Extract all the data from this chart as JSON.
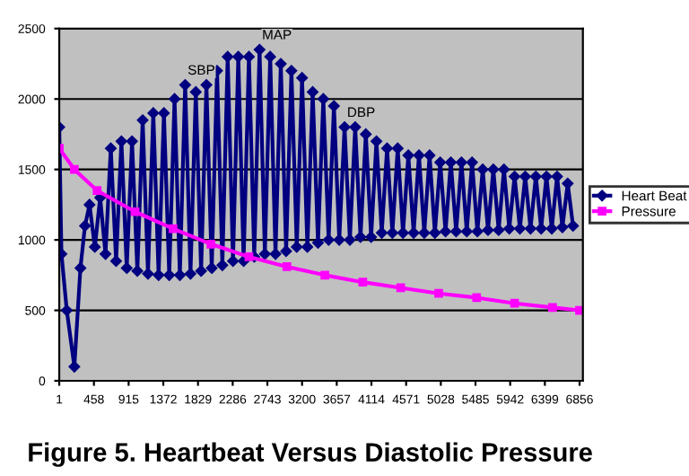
{
  "chart_data": {
    "type": "line",
    "title": "Figure 5. Heartbeat Versus Diastolic Pressure",
    "xlim": [
      1,
      6900
    ],
    "xticks": [
      1,
      458,
      915,
      1372,
      1829,
      2286,
      2743,
      3200,
      3657,
      4114,
      4571,
      5028,
      5485,
      5942,
      6399,
      6856
    ],
    "ylim": [
      0,
      2500
    ],
    "yticks": [
      0,
      500,
      1000,
      1500,
      2000,
      2500
    ],
    "grid": "y",
    "legend": "right",
    "annotations": [
      {
        "text": "SBP",
        "x": 1660,
        "y": 2100
      },
      {
        "text": "MAP",
        "x": 2640,
        "y": 2350
      },
      {
        "text": "DBP",
        "x": 3760,
        "y": 1800
      }
    ],
    "series": [
      {
        "name": "Heart Beat",
        "color": "#000080",
        "marker": "diamond",
        "x": [
          1,
          30,
          100,
          200,
          280,
          340,
          400,
          470,
          540,
          610,
          680,
          750,
          820,
          890,
          960,
          1030,
          1100,
          1170,
          1240,
          1310,
          1380,
          1450,
          1520,
          1590,
          1660,
          1730,
          1800,
          1870,
          1940,
          2010,
          2080,
          2150,
          2220,
          2290,
          2360,
          2430,
          2500,
          2570,
          2640,
          2710,
          2780,
          2850,
          2920,
          2990,
          3060,
          3130,
          3200,
          3270,
          3340,
          3410,
          3480,
          3550,
          3620,
          3690,
          3760,
          3830,
          3900,
          3970,
          4040,
          4110,
          4180,
          4250,
          4320,
          4390,
          4460,
          4530,
          4600,
          4670,
          4740,
          4810,
          4880,
          4950,
          5020,
          5090,
          5160,
          5230,
          5300,
          5370,
          5440,
          5510,
          5580,
          5650,
          5720,
          5790,
          5860,
          5930,
          6000,
          6070,
          6140,
          6210,
          6280,
          6350,
          6420,
          6490,
          6560,
          6630,
          6700,
          6770
        ],
        "values": [
          1800,
          900,
          500,
          100,
          800,
          1100,
          1250,
          950,
          1300,
          900,
          1650,
          850,
          1700,
          800,
          1700,
          780,
          1850,
          760,
          1900,
          750,
          1900,
          750,
          2000,
          750,
          2100,
          760,
          2050,
          780,
          2100,
          800,
          2200,
          820,
          2300,
          850,
          2300,
          850,
          2300,
          880,
          2350,
          900,
          2300,
          900,
          2250,
          920,
          2200,
          950,
          2150,
          950,
          2050,
          980,
          2000,
          1000,
          1950,
          1000,
          1800,
          1000,
          1800,
          1020,
          1750,
          1020,
          1700,
          1050,
          1650,
          1050,
          1650,
          1050,
          1600,
          1050,
          1600,
          1050,
          1600,
          1050,
          1550,
          1060,
          1550,
          1060,
          1550,
          1060,
          1550,
          1060,
          1500,
          1070,
          1500,
          1070,
          1500,
          1080,
          1450,
          1080,
          1450,
          1080,
          1450,
          1080,
          1450,
          1080,
          1450,
          1090,
          1400,
          1100
        ]
      },
      {
        "name": "Pressure",
        "color": "#ff00ff",
        "marker": "square",
        "x": [
          1,
          200,
          500,
          1000,
          1500,
          2000,
          2500,
          3000,
          3500,
          4000,
          4500,
          5000,
          5500,
          6000,
          6500,
          6856
        ],
        "values": [
          1650,
          1500,
          1350,
          1200,
          1080,
          970,
          880,
          810,
          750,
          700,
          660,
          620,
          590,
          550,
          520,
          500
        ]
      }
    ]
  }
}
